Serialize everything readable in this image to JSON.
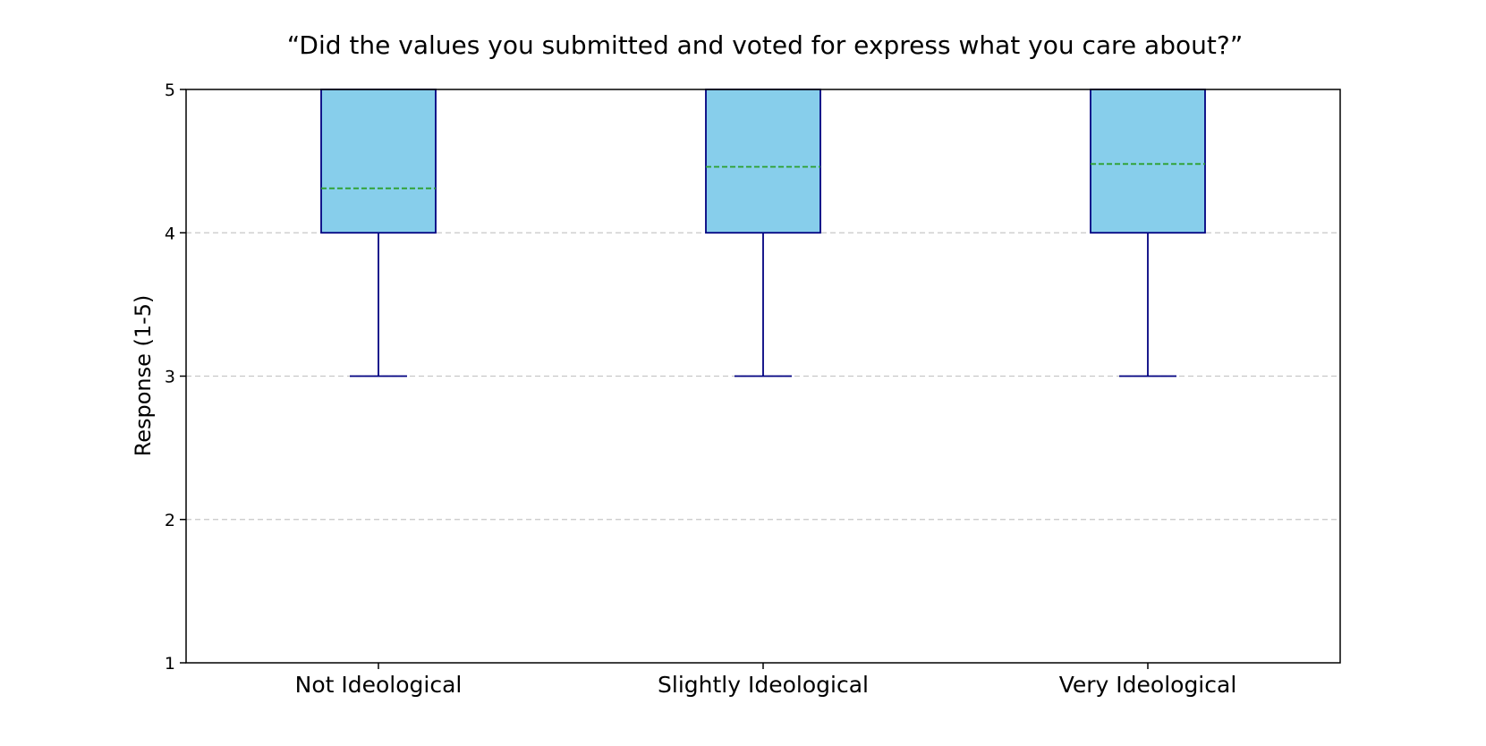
{
  "chart_data": {
    "type": "box",
    "title": "“Did the values you submitted and voted for express what you care about?”",
    "xlabel": "",
    "ylabel": "Response (1-5)",
    "ylim": [
      1,
      5
    ],
    "yticks": [
      1,
      2,
      3,
      4,
      5
    ],
    "ytick_labels": [
      "1",
      "2",
      "3",
      "4",
      "5"
    ],
    "categories": [
      "Not Ideological",
      "Slightly Ideological",
      "Very Ideological"
    ],
    "boxes": [
      {
        "q1": 4,
        "q3": 5,
        "median": 5,
        "mean": 4.31,
        "whisker_low": 3,
        "whisker_high": 5
      },
      {
        "q1": 4,
        "q3": 5,
        "median": 5,
        "mean": 4.46,
        "whisker_low": 3,
        "whisker_high": 5
      },
      {
        "q1": 4,
        "q3": 5,
        "median": 5,
        "mean": 4.48,
        "whisker_low": 3,
        "whisker_high": 5
      }
    ],
    "grid": {
      "axis": "y",
      "style": "dashed"
    },
    "colors": {
      "box_fill": "#87CEEB",
      "box_edge": "#000080",
      "mean_line": "#2CA02C",
      "grid": "#C8C8C8",
      "axes": "#000000"
    }
  }
}
